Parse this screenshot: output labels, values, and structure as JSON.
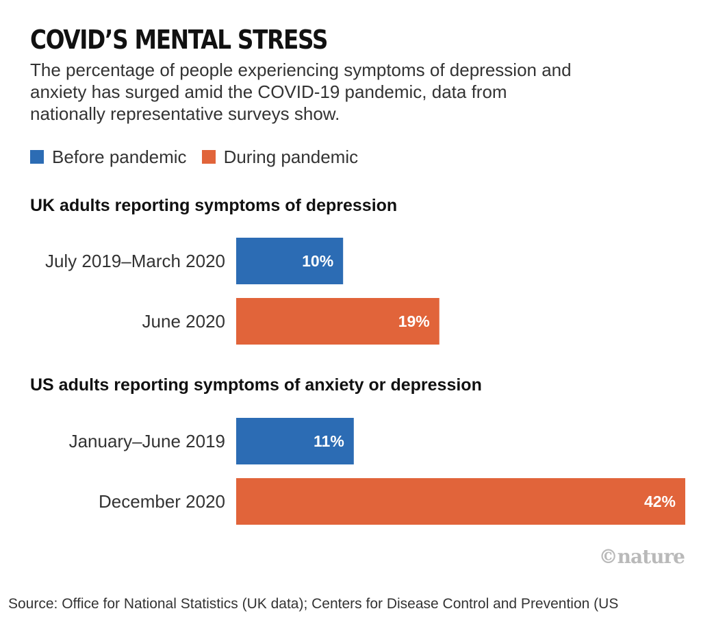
{
  "title": "COVID’S MENTAL STRESS",
  "subtitle": "The percentage of people experiencing symptoms of depression and anxiety has surged amid the COVID-19 pandemic, data from nationally representative surveys show.",
  "legend": [
    {
      "label": "Before pandemic",
      "color": "#2c6cb4"
    },
    {
      "label": "During pandemic",
      "color": "#e1643a"
    }
  ],
  "chart_data": [
    {
      "type": "bar",
      "orientation": "horizontal",
      "title": "UK adults reporting symptoms of depression",
      "categories": [
        "July 2019–March 2020",
        "June 2020"
      ],
      "values": [
        10,
        19
      ],
      "value_labels": [
        "10%",
        "19%"
      ],
      "groups": [
        "Before pandemic",
        "During pandemic"
      ],
      "unit": "%",
      "xlim": [
        0,
        42
      ]
    },
    {
      "type": "bar",
      "orientation": "horizontal",
      "title": "US adults reporting symptoms of anxiety or depression",
      "categories": [
        "January–June 2019",
        "December 2020"
      ],
      "values": [
        11,
        42
      ],
      "value_labels": [
        "11%",
        "42%"
      ],
      "groups": [
        "Before pandemic",
        "During pandemic"
      ],
      "unit": "%",
      "xlim": [
        0,
        42
      ]
    }
  ],
  "logo": "©nature",
  "source": "Source: Office for National Statistics (UK data); Centers for Disease Control and Prevention (US"
}
